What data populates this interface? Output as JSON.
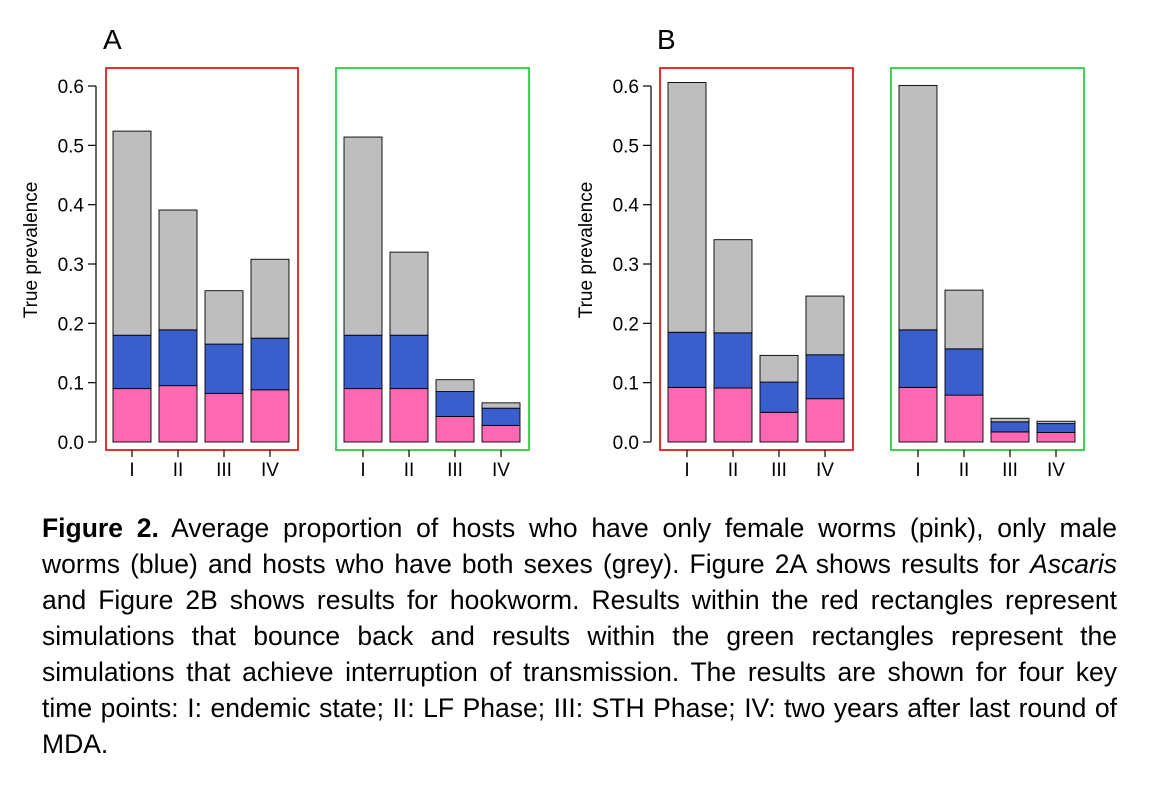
{
  "colors": {
    "female": "#ff69b4",
    "male": "#3a5fcd",
    "both": "#bebebe",
    "bounce_frame": "#e41a1c",
    "interrupt_frame": "#2ecc40"
  },
  "legend_mapping": {
    "female": "only female worms (pink)",
    "male": "only male worms (blue)",
    "both": "both sexes (grey)"
  },
  "chart_data": [
    {
      "type": "bar",
      "stacked": true,
      "panel": "A",
      "title": "A",
      "ylabel": "True prevalence",
      "ylim": [
        0,
        0.6
      ],
      "yticks": [
        "0.0",
        "0.1",
        "0.2",
        "0.3",
        "0.4",
        "0.5",
        "0.6"
      ],
      "groups": [
        {
          "name": "bounce back",
          "frame": "red",
          "categories": [
            "I",
            "II",
            "III",
            "IV"
          ],
          "series": [
            {
              "name": "female only",
              "values": [
                0.09,
                0.095,
                0.082,
                0.088
              ]
            },
            {
              "name": "male only",
              "values": [
                0.09,
                0.094,
                0.083,
                0.087
              ]
            },
            {
              "name": "both sexes",
              "values": [
                0.344,
                0.202,
                0.09,
                0.133
              ]
            }
          ]
        },
        {
          "name": "interruption of transmission",
          "frame": "green",
          "categories": [
            "I",
            "II",
            "III",
            "IV"
          ],
          "series": [
            {
              "name": "female only",
              "values": [
                0.09,
                0.09,
                0.043,
                0.028
              ]
            },
            {
              "name": "male only",
              "values": [
                0.09,
                0.09,
                0.042,
                0.029
              ]
            },
            {
              "name": "both sexes",
              "values": [
                0.334,
                0.14,
                0.02,
                0.009
              ]
            }
          ]
        }
      ]
    },
    {
      "type": "bar",
      "stacked": true,
      "panel": "B",
      "title": "B",
      "ylabel": "True prevalence",
      "ylim": [
        0,
        0.6
      ],
      "yticks": [
        "0.0",
        "0.1",
        "0.2",
        "0.3",
        "0.4",
        "0.5",
        "0.6"
      ],
      "groups": [
        {
          "name": "bounce back",
          "frame": "red",
          "categories": [
            "I",
            "II",
            "III",
            "IV"
          ],
          "series": [
            {
              "name": "female only",
              "values": [
                0.092,
                0.091,
                0.05,
                0.073
              ]
            },
            {
              "name": "male only",
              "values": [
                0.093,
                0.093,
                0.051,
                0.074
              ]
            },
            {
              "name": "both sexes",
              "values": [
                0.421,
                0.157,
                0.045,
                0.099
              ]
            }
          ]
        },
        {
          "name": "interruption of transmission",
          "frame": "green",
          "categories": [
            "I",
            "II",
            "III",
            "IV"
          ],
          "series": [
            {
              "name": "female only",
              "values": [
                0.092,
                0.079,
                0.017,
                0.016
              ]
            },
            {
              "name": "male only",
              "values": [
                0.097,
                0.078,
                0.017,
                0.015
              ]
            },
            {
              "name": "both sexes",
              "values": [
                0.412,
                0.099,
                0.006,
                0.004
              ]
            }
          ]
        }
      ]
    }
  ],
  "caption": {
    "label": "Figure 2.",
    "part1": " Average proportion of hosts who have only female worms (pink), only male worms (blue) and hosts who have both sexes (grey). Figure 2A shows results for ",
    "italic": "Ascaris",
    "part2": " and Figure 2B shows results for hookworm. Results within the red rectangles represent simulations that bounce back and results within the green rectangles represent the simulations that achieve interruption of transmission. The results are shown for four key time points: I: endemic state; II: LF Phase; III: STH Phase; IV: two years after last round of MDA."
  }
}
